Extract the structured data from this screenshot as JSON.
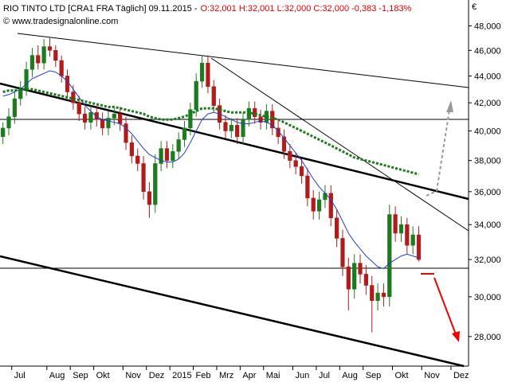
{
  "chart_data": {
    "type": "candlestick",
    "title": "RIO TINTO LTD [CRA1 FRA  Täglich] 09.11.2015 -",
    "subtitle": "O:32,001 H:32,001 L:32,000 C:32,000 -0,383 -1,183%",
    "watermark": "© www.tradesignalonline.com",
    "unit_label": "€",
    "log_scale": true,
    "up_color": "#1e7a1e",
    "down_color": "#b01c1c",
    "ylim": [
      26.6,
      50.2
    ],
    "yticks": [
      {
        "value": 28,
        "label": "28,000"
      },
      {
        "value": 30,
        "label": "30,000"
      },
      {
        "value": 32,
        "label": "32,000"
      },
      {
        "value": 34,
        "label": "34,000"
      },
      {
        "value": 36,
        "label": "36,000"
      },
      {
        "value": 38,
        "label": "38,000"
      },
      {
        "value": 40,
        "label": "40,000"
      },
      {
        "value": 42,
        "label": "42,000"
      },
      {
        "value": 44,
        "label": "44,000"
      },
      {
        "value": 46,
        "label": "46,000"
      },
      {
        "value": 48,
        "label": "48,000"
      }
    ],
    "categories": [
      null,
      null,
      "Jul",
      null,
      null,
      null,
      null,
      null,
      "Aug",
      null,
      null,
      null,
      "Sep",
      null,
      null,
      null,
      "Okt",
      null,
      null,
      null,
      null,
      "Nov",
      null,
      null,
      null,
      "Dez",
      null,
      null,
      null,
      "2015",
      null,
      null,
      null,
      "Feb",
      null,
      null,
      null,
      "Mrz",
      null,
      null,
      null,
      "Apr",
      null,
      null,
      null,
      "Mai",
      null,
      null,
      null,
      null,
      "Jun",
      null,
      null,
      null,
      "Jul",
      null,
      null,
      null,
      "Aug",
      null,
      null,
      null,
      "Sep",
      null,
      null,
      null,
      null,
      "Okt",
      null,
      null,
      null,
      null,
      "Nov",
      null,
      null,
      null,
      null,
      "Dez",
      null,
      null
    ],
    "open": [
      39.6,
      40.2,
      41.0,
      42.3,
      43.0,
      44.5,
      45.6,
      45.0,
      46.3,
      46.0,
      45.2,
      44.0,
      42.8,
      42.0,
      41.2,
      40.6,
      41.3,
      40.8,
      40.2,
      40.9,
      41.2,
      40.5,
      39.2,
      38.3,
      37.8,
      36.0,
      35.2,
      37.8,
      38.8,
      38.0,
      38.6,
      39.4,
      40.2,
      41.5,
      43.6,
      45.0,
      43.2,
      41.8,
      40.6,
      40.0,
      40.4,
      39.6,
      40.8,
      41.6,
      41.0,
      40.6,
      41.4,
      40.2,
      39.6,
      38.6,
      38.0,
      37.6,
      37.0,
      35.6,
      34.8,
      35.5,
      35.9,
      34.4,
      33.2,
      31.6,
      30.4,
      31.8,
      31.2,
      30.6,
      29.8,
      30.2,
      30.0,
      34.6,
      33.5,
      34.0,
      32.8,
      33.4,
      null,
      null,
      null,
      null,
      null,
      null,
      null,
      null
    ],
    "high": [
      40.6,
      41.6,
      42.9,
      43.6,
      45.1,
      46.2,
      46.4,
      46.9,
      47.0,
      46.4,
      45.6,
      44.5,
      43.3,
      42.5,
      41.7,
      41.8,
      41.8,
      41.3,
      41.4,
      41.7,
      41.7,
      41.0,
      39.7,
      38.8,
      38.3,
      36.6,
      38.4,
      39.3,
      39.3,
      39.1,
      39.9,
      40.7,
      42.0,
      44.2,
      45.6,
      45.6,
      43.7,
      42.3,
      41.1,
      40.9,
      40.9,
      41.3,
      42.1,
      42.1,
      41.5,
      41.9,
      41.9,
      40.7,
      40.1,
      39.1,
      38.5,
      38.1,
      37.5,
      36.1,
      36.0,
      36.4,
      36.4,
      34.9,
      33.7,
      32.1,
      32.3,
      32.3,
      31.7,
      31.1,
      30.7,
      30.7,
      35.2,
      35.1,
      34.5,
      34.4,
      33.9,
      33.9,
      null,
      null,
      null,
      null,
      null,
      null,
      null,
      null
    ],
    "low": [
      39.1,
      39.7,
      40.5,
      41.8,
      42.5,
      43.9,
      44.5,
      44.5,
      45.5,
      44.7,
      43.5,
      42.3,
      41.5,
      40.7,
      40.1,
      40.1,
      40.3,
      39.7,
      39.7,
      40.4,
      40.0,
      38.7,
      37.8,
      37.3,
      35.5,
      34.4,
      34.7,
      37.3,
      37.5,
      37.5,
      38.1,
      38.9,
      39.7,
      41.0,
      43.1,
      42.7,
      41.3,
      40.1,
      39.5,
      39.5,
      39.1,
      39.1,
      40.3,
      40.5,
      40.1,
      40.1,
      39.7,
      39.1,
      38.1,
      37.5,
      37.1,
      36.5,
      35.1,
      34.3,
      34.3,
      35.0,
      33.9,
      32.7,
      31.1,
      29.3,
      29.9,
      30.7,
      30.1,
      28.2,
      29.3,
      29.5,
      29.5,
      33.0,
      33.0,
      32.3,
      32.3,
      31.9,
      null,
      null,
      null,
      null,
      null,
      null,
      null,
      null
    ],
    "close": [
      40.2,
      41.0,
      42.3,
      43.0,
      44.5,
      45.6,
      45.0,
      46.3,
      46.0,
      45.2,
      44.0,
      42.8,
      42.0,
      41.2,
      40.6,
      41.3,
      40.8,
      40.2,
      40.9,
      41.2,
      40.5,
      39.2,
      38.3,
      37.8,
      36.0,
      35.2,
      37.8,
      38.8,
      38.0,
      38.6,
      39.4,
      40.2,
      41.5,
      43.6,
      45.0,
      43.2,
      41.8,
      40.6,
      40.0,
      40.4,
      39.6,
      40.8,
      41.6,
      41.0,
      40.6,
      41.4,
      40.2,
      39.6,
      38.6,
      38.0,
      37.6,
      37.0,
      35.6,
      34.8,
      35.5,
      35.9,
      34.4,
      33.2,
      31.6,
      30.4,
      31.8,
      31.2,
      30.6,
      29.8,
      30.2,
      30.0,
      34.6,
      33.5,
      34.0,
      32.8,
      33.4,
      32.0,
      null,
      null,
      null,
      null,
      null,
      null,
      null,
      null
    ],
    "overlays": [
      {
        "color": "#1f3fd0",
        "dashed": false,
        "values": [
          42.5,
          42.6,
          42.8,
          43.0,
          43.4,
          43.8,
          44.0,
          44.2,
          44.4,
          44.3,
          44.0,
          43.6,
          43.0,
          42.4,
          41.8,
          41.4,
          41.0,
          40.8,
          40.7,
          40.6,
          40.5,
          40.2,
          39.8,
          39.3,
          38.8,
          38.4,
          38.2,
          38.0,
          37.9,
          37.9,
          38.1,
          38.5,
          39.2,
          40.0,
          40.8,
          41.2,
          41.3,
          41.2,
          41.0,
          40.8,
          40.6,
          40.5,
          40.5,
          40.6,
          40.7,
          40.6,
          40.4,
          40.0,
          39.5,
          39.0,
          38.5,
          38.0,
          37.4,
          36.8,
          36.3,
          35.9,
          35.5,
          34.9,
          34.2,
          33.5,
          33.0,
          32.6,
          32.2,
          31.9,
          31.6,
          31.5,
          31.8,
          32.0,
          32.2,
          32.3,
          32.2,
          32.1,
          null,
          null,
          null,
          null,
          null,
          null,
          null,
          null
        ]
      },
      {
        "color": "#1a7a1a",
        "dashed": true,
        "values": [
          42.8,
          42.9,
          42.9,
          43.0,
          43.0,
          43.0,
          42.9,
          42.8,
          42.7,
          42.6,
          42.5,
          42.4,
          42.3,
          42.2,
          42.1,
          42.0,
          41.9,
          41.8,
          41.7,
          41.7,
          41.6,
          41.5,
          41.4,
          41.3,
          41.2,
          41.0,
          40.9,
          40.8,
          40.8,
          40.8,
          40.9,
          41.0,
          41.2,
          41.4,
          41.6,
          41.6,
          41.6,
          41.5,
          41.4,
          41.3,
          41.3,
          41.3,
          41.3,
          41.2,
          41.1,
          41.0,
          40.9,
          40.8,
          40.6,
          40.4,
          40.2,
          40.0,
          39.8,
          39.6,
          39.4,
          39.2,
          39.0,
          38.8,
          38.6,
          38.4,
          38.2,
          38.1,
          38.0,
          37.9,
          37.8,
          37.7,
          37.6,
          37.5,
          37.4,
          37.3,
          37.2,
          37.1,
          null,
          null,
          null,
          null,
          null,
          null,
          null,
          null
        ]
      }
    ]
  }
}
